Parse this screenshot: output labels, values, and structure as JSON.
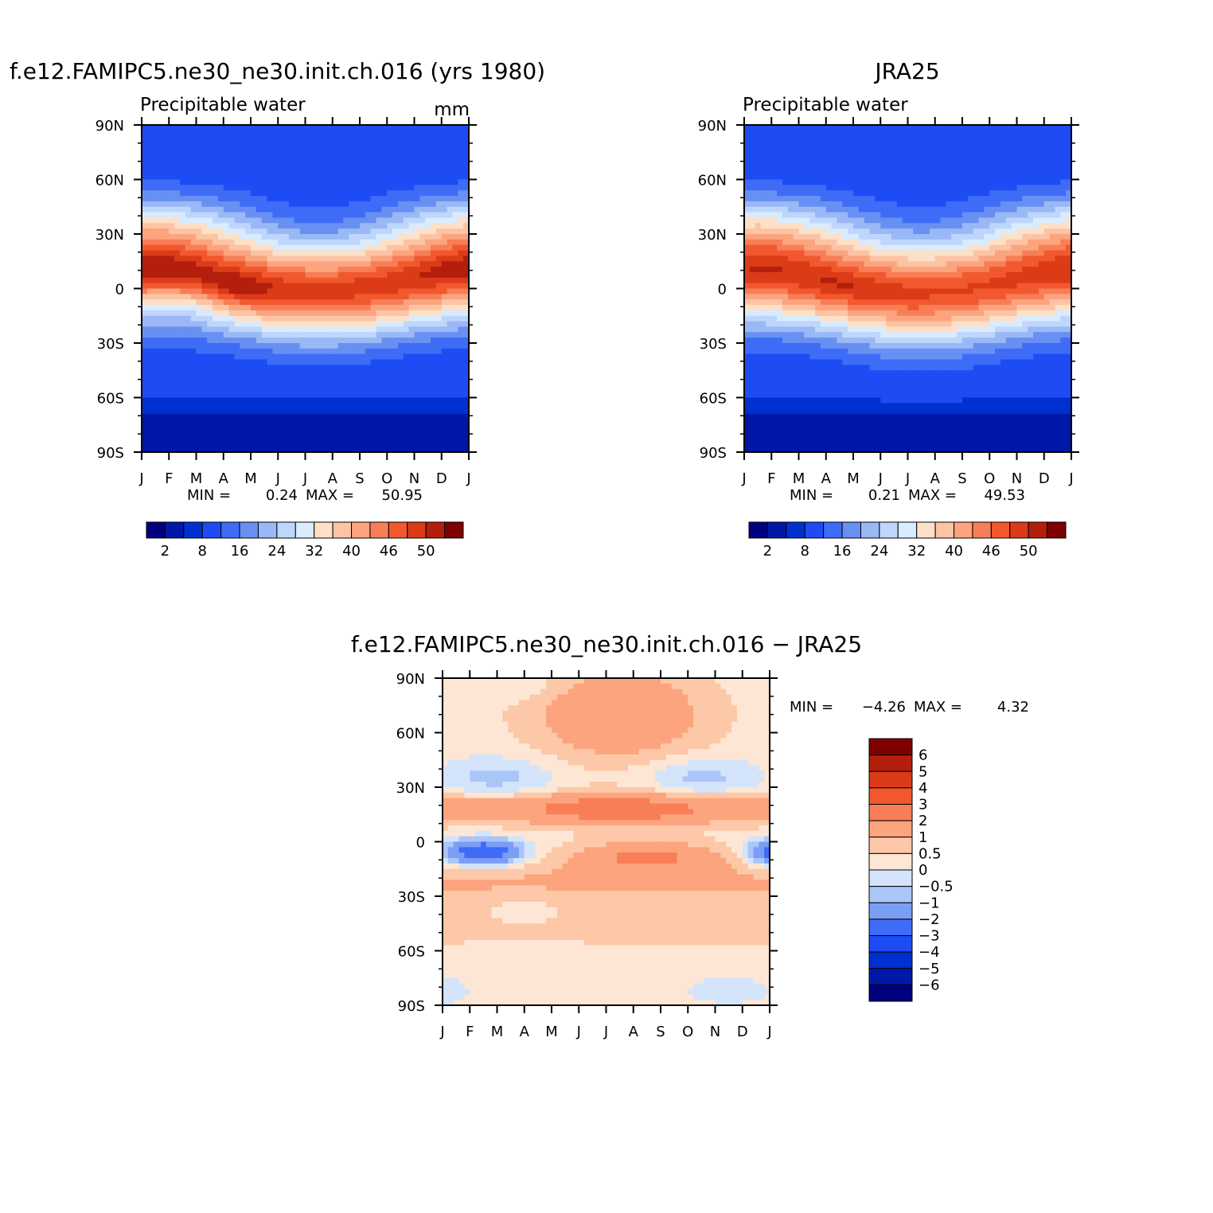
{
  "page": {
    "stats_prefix_min": "MIN =",
    "stats_prefix_max": "MAX ="
  },
  "palettes": {
    "abs": [
      "#00007f",
      "#0018a8",
      "#0030cf",
      "#1e4cf4",
      "#3e6cf7",
      "#6890f3",
      "#9ab8f6",
      "#bed6fb",
      "#d9ebfd",
      "#fde0c8",
      "#fcc4a4",
      "#fca47e",
      "#f77e57",
      "#f2582e",
      "#dc3b18",
      "#b41e0c",
      "#7e0000"
    ],
    "diff": [
      "#00007f",
      "#0018a8",
      "#0030cf",
      "#1e4cf4",
      "#3e6cf7",
      "#7b9ef5",
      "#aac6f8",
      "#d3e4fb",
      "#fde6d4",
      "#fdc8a8",
      "#fca47e",
      "#f77e57",
      "#f2582e",
      "#dc3b18",
      "#b41e0c",
      "#7e0000"
    ]
  },
  "chart_data": [
    {
      "type": "heatmap",
      "title": "f.e12.FAMIPC5.ne30_ne30.init.ch.016 (yrs 1980)",
      "subtitle_left": "Precipitable water",
      "subtitle_right": "mm",
      "x_ticks": [
        "J",
        "F",
        "M",
        "A",
        "M",
        "J",
        "J",
        "A",
        "S",
        "O",
        "N",
        "D",
        "J"
      ],
      "y_ticks": [
        "90N",
        "60N",
        "30N",
        "0",
        "30S",
        "60S",
        "90S"
      ],
      "y_values": [
        90,
        60,
        30,
        0,
        -30,
        -60,
        -90
      ],
      "min": "0.24",
      "max": "50.95",
      "colorbar_labels": [
        "2",
        "8",
        "16",
        "24",
        "32",
        "40",
        "46",
        "50"
      ],
      "colorbar_label_positions": [
        1,
        3,
        5,
        7,
        9,
        11,
        13,
        15
      ],
      "colorbar_levels": [
        0,
        2,
        4,
        8,
        12,
        16,
        20,
        24,
        28,
        32,
        36,
        40,
        43,
        46,
        48,
        50
      ],
      "palette": "abs",
      "field": "model"
    },
    {
      "type": "heatmap",
      "title": "JRA25",
      "subtitle_left": "Precipitable water",
      "subtitle_right": "",
      "x_ticks": [
        "J",
        "F",
        "M",
        "A",
        "M",
        "J",
        "J",
        "A",
        "S",
        "O",
        "N",
        "D",
        "J"
      ],
      "y_ticks": [
        "90N",
        "60N",
        "30N",
        "0",
        "30S",
        "60S",
        "90S"
      ],
      "y_values": [
        90,
        60,
        30,
        0,
        -30,
        -60,
        -90
      ],
      "min": "0.21",
      "max": "49.53",
      "colorbar_labels": [
        "2",
        "8",
        "16",
        "24",
        "32",
        "40",
        "46",
        "50"
      ],
      "colorbar_label_positions": [
        1,
        3,
        5,
        7,
        9,
        11,
        13,
        15
      ],
      "colorbar_levels": [
        0,
        2,
        4,
        8,
        12,
        16,
        20,
        24,
        28,
        32,
        36,
        40,
        43,
        46,
        48,
        50
      ],
      "palette": "abs",
      "field": "obs"
    },
    {
      "type": "heatmap",
      "title": "f.e12.FAMIPC5.ne30_ne30.init.ch.016 − JRA25",
      "x_ticks": [
        "J",
        "F",
        "M",
        "A",
        "M",
        "J",
        "J",
        "A",
        "S",
        "O",
        "N",
        "D",
        "J"
      ],
      "y_ticks": [
        "90N",
        "60N",
        "30N",
        "0",
        "30S",
        "60S",
        "90S"
      ],
      "y_values": [
        90,
        60,
        30,
        0,
        -30,
        -60,
        -90
      ],
      "min": "−4.26",
      "max": "4.32",
      "colorbar_labels": [
        "6",
        "5",
        "4",
        "3",
        "2",
        "1",
        "0.5",
        "0",
        "−0.5",
        "−1",
        "−2",
        "−3",
        "−4",
        "−5",
        "−6"
      ],
      "colorbar_levels": [
        -6,
        -5,
        -4,
        -3,
        -2,
        -1,
        -0.5,
        0,
        0.5,
        1,
        2,
        3,
        4,
        5,
        6
      ],
      "palette": "diff",
      "field": "diff"
    }
  ]
}
